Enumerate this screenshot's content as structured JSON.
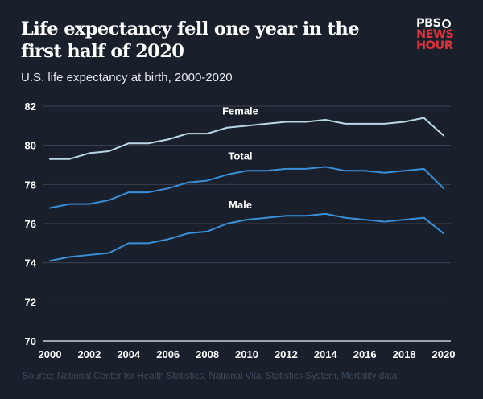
{
  "header": {
    "title": "Life expectancy fell one year in the first half of 2020",
    "subtitle": "U.S. life expectancy at birth, 2000-2020"
  },
  "logo": {
    "line1": "PBS",
    "line2": "NEWS",
    "line3": "HOUR",
    "icon": "pbs-head-icon",
    "colors": {
      "white": "#ffffff",
      "red": "#e0303b"
    }
  },
  "footer": {
    "source": "Source: National Center for Health Statistics, National Vital Statistics System, Mortality data"
  },
  "colors": {
    "background": "#19202c",
    "grid": "#3a4150",
    "baseline": "#c9ced6",
    "tick_text": "#ffffff",
    "female": "#bcd8e6",
    "total": "#3a8fd9",
    "male": "#3a8fd9"
  },
  "chart_data": {
    "type": "line",
    "title": "Life expectancy fell one year in the first half of 2020",
    "subtitle": "U.S. life expectancy at birth, 2000-2020",
    "xlabel": "",
    "ylabel": "",
    "x": [
      2000,
      2001,
      2002,
      2003,
      2004,
      2005,
      2006,
      2007,
      2008,
      2009,
      2010,
      2011,
      2012,
      2013,
      2014,
      2015,
      2016,
      2017,
      2018,
      2019,
      2020
    ],
    "xlim": [
      2000,
      2020
    ],
    "ylim": [
      70,
      82
    ],
    "xticks": [
      "2000",
      "2002",
      "2004",
      "2006",
      "2008",
      "2010",
      "2012",
      "2014",
      "2016",
      "2018",
      "2020"
    ],
    "yticks": [
      "70",
      "72",
      "74",
      "76",
      "78",
      "80",
      "82"
    ],
    "grid": true,
    "legend": "inline-labels",
    "series": [
      {
        "name": "Female",
        "label_year": 2010,
        "values": [
          79.3,
          79.3,
          79.6,
          79.7,
          80.1,
          80.1,
          80.3,
          80.6,
          80.6,
          80.9,
          81.0,
          81.1,
          81.2,
          81.2,
          81.3,
          81.1,
          81.1,
          81.1,
          81.2,
          81.4,
          80.5
        ]
      },
      {
        "name": "Total",
        "label_year": 2010,
        "values": [
          76.8,
          77.0,
          77.0,
          77.2,
          77.6,
          77.6,
          77.8,
          78.1,
          78.2,
          78.5,
          78.7,
          78.7,
          78.8,
          78.8,
          78.9,
          78.7,
          78.7,
          78.6,
          78.7,
          78.8,
          77.8
        ]
      },
      {
        "name": "Male",
        "label_year": 2010,
        "values": [
          74.1,
          74.3,
          74.4,
          74.5,
          75.0,
          75.0,
          75.2,
          75.5,
          75.6,
          76.0,
          76.2,
          76.3,
          76.4,
          76.4,
          76.5,
          76.3,
          76.2,
          76.1,
          76.2,
          76.3,
          75.5
        ]
      }
    ]
  }
}
